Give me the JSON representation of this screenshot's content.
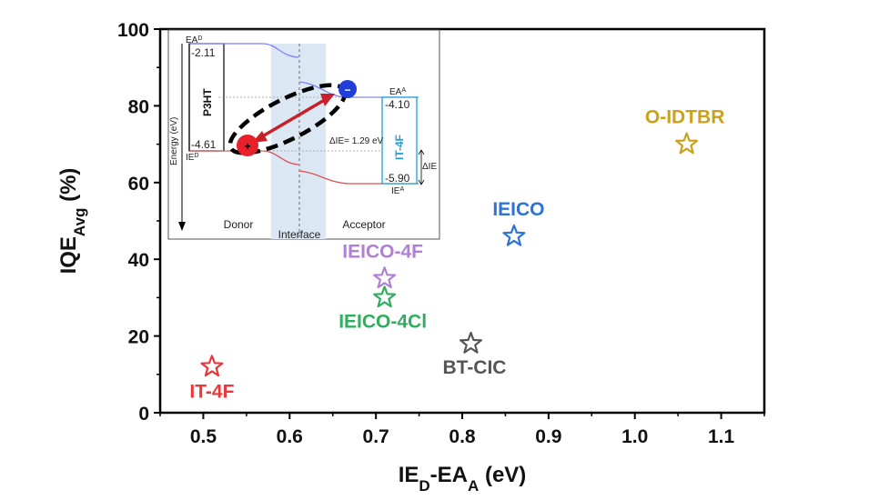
{
  "chart_data": {
    "type": "scatter",
    "xlabel_main": "IE",
    "xlabel_sub1": "D",
    "xlabel_mid": "-EA",
    "xlabel_sub2": "A",
    "xlabel_unit": " (eV)",
    "ylabel_main": "IQE",
    "ylabel_sub": "Avg",
    "ylabel_unit": " (%)",
    "xlim": [
      0.45,
      1.15
    ],
    "ylim": [
      0,
      100
    ],
    "x_ticks": [
      "0.5",
      "0.6",
      "0.7",
      "0.8",
      "0.9",
      "1.0",
      "1.1"
    ],
    "x_tick_values": [
      0.5,
      0.6,
      0.7,
      0.8,
      0.9,
      1.0,
      1.1
    ],
    "y_ticks": [
      "0",
      "20",
      "40",
      "60",
      "80",
      "100"
    ],
    "y_tick_values": [
      0,
      20,
      40,
      60,
      80,
      100
    ],
    "grid": false,
    "marker": "star",
    "points": [
      {
        "label": "IT-4F",
        "x": 0.51,
        "y": 12,
        "color": "#e8383d"
      },
      {
        "label": "IEICO-4F",
        "x": 0.71,
        "y": 35,
        "color": "#b07fd6"
      },
      {
        "label": "IEICO-4Cl",
        "x": 0.71,
        "y": 30,
        "color": "#2fae5e"
      },
      {
        "label": "BT-CIC",
        "x": 0.81,
        "y": 18,
        "color": "#555555"
      },
      {
        "label": "IEICO",
        "x": 0.86,
        "y": 46,
        "color": "#2d73d8"
      },
      {
        "label": "O-IDTBR",
        "x": 1.06,
        "y": 70,
        "color": "#c9a21a"
      }
    ]
  },
  "inset": {
    "ea_d_label": "EA",
    "ea_d_sup": "D",
    "ea_d_value": "-2.11",
    "ie_d_label": "IE",
    "ie_d_sup": "D",
    "ie_d_value": "-4.61",
    "donor_name": "P3HT",
    "energy_axis": "Energy (eV)",
    "ea_a_label": "EA",
    "ea_a_sup": "A",
    "ea_a_value": "-4.10",
    "ie_a_label": "IE",
    "ie_a_sup": "A",
    "ie_a_value": "-5.90",
    "acceptor_name": "IT-4F",
    "delta_ie_text": "ΔIE= 1.29 eV",
    "delta_ie_side": "ΔIE",
    "region_donor": "Donor",
    "region_interface": "Interface",
    "region_acceptor": "Acceptor",
    "hole_symbol": "+",
    "electron_symbol": "−",
    "colors": {
      "donor_line": "#8080ff",
      "donor_line_red": "#e05050",
      "acceptor_box": "#1aa0d8",
      "interface_band": "#dbe8f4",
      "hole": "#e8202a",
      "electron": "#1f3fd8",
      "arrow": "#c8202a"
    }
  }
}
